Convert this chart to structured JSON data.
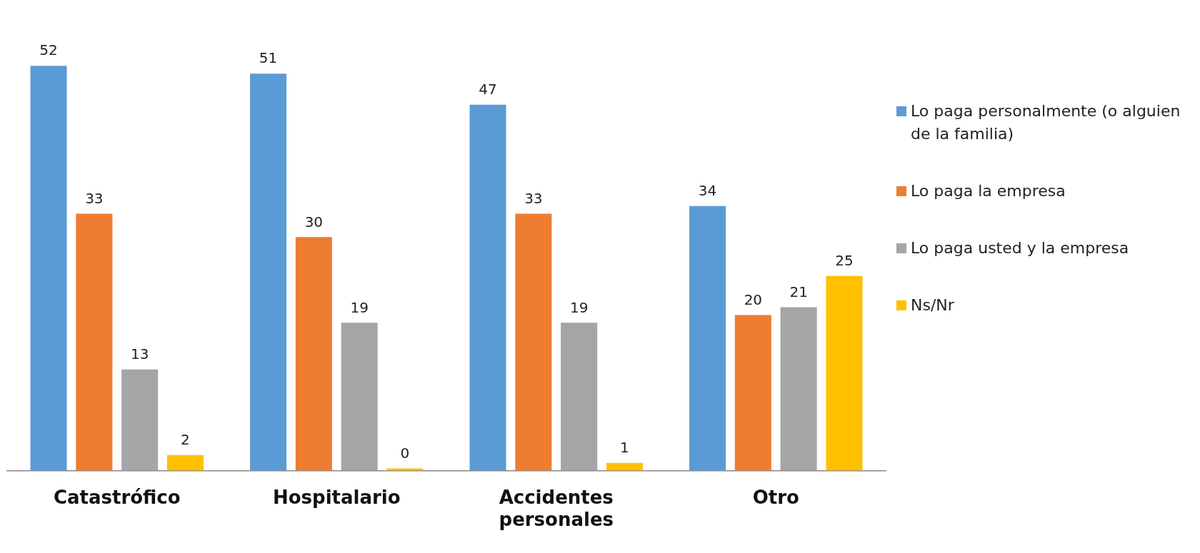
{
  "chart_data": {
    "type": "bar",
    "categories": [
      "Catastrófico",
      "Hospitalario",
      "Accidentes personales",
      "Otro"
    ],
    "series": [
      {
        "name": "Lo paga personalmente (o alguien de la familia)",
        "color": "#5b9bd5",
        "values": [
          52,
          51,
          47,
          34
        ]
      },
      {
        "name": "Lo paga la empresa",
        "color": "#ed7d31",
        "values": [
          33,
          30,
          33,
          20
        ]
      },
      {
        "name": "Lo paga usted y la empresa",
        "color": "#a5a5a5",
        "values": [
          13,
          19,
          19,
          21
        ]
      },
      {
        "name": "Ns/Nr",
        "color": "#ffc000",
        "values": [
          2,
          0,
          1,
          25
        ]
      }
    ],
    "data_labels": true,
    "grid": false,
    "legend": "right"
  }
}
